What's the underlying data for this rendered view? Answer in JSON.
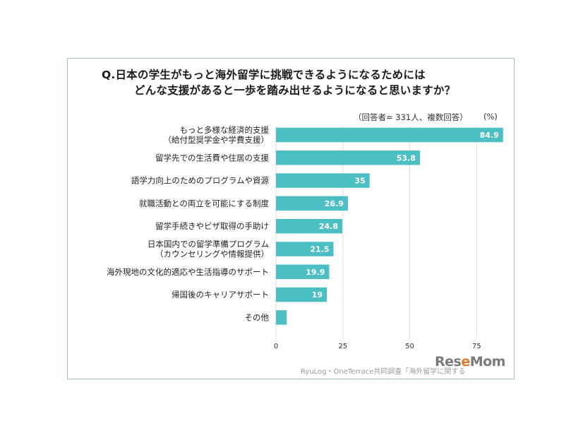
{
  "chart_data": {
    "type": "bar",
    "orientation": "horizontal",
    "title": [
      "Q.日本の学生がもっと海外留学に挑戦できるようになるためには",
      "どんな支援があると一歩を踏み出せるようになると思いますか？"
    ],
    "note": "（回答者= 331人、複数回答）",
    "unit": "(%)",
    "categories": [
      [
        "もっと多様な経済的支援",
        "（給付型奨学金や学費支援）"
      ],
      [
        "留学先での生活費や住居の支援"
      ],
      [
        "語学力向上のためのプログラムや資源"
      ],
      [
        "就職活動との両立を可能にする制度"
      ],
      [
        "留学手続きやビザ取得の手助け"
      ],
      [
        "日本国内での留学準備プログラム",
        "（カウンセリングや情報提供）"
      ],
      [
        "海外現地の文化的適応や生活指導のサポート"
      ],
      [
        "帰国後のキャリアサポート"
      ],
      [
        "その他"
      ]
    ],
    "values": [
      84.9,
      53.8,
      35,
      26.9,
      24.8,
      21.5,
      19.9,
      19,
      4
    ],
    "value_labels": [
      "84.9",
      "53.8",
      "35",
      "26.9",
      "24.8",
      "21.5",
      "19.9",
      "19",
      ""
    ],
    "xlim": [
      0,
      85
    ],
    "xticks": [
      0,
      25,
      50,
      75
    ],
    "bar_color": "#4cbfc4",
    "grid_color": "#dddddd",
    "grid": true
  },
  "source": "RyuLog・OneTerrace共同調査「海外留学に関する",
  "logo": {
    "prefix": "Res",
    "accent": "e",
    "suffix": "Mom"
  }
}
